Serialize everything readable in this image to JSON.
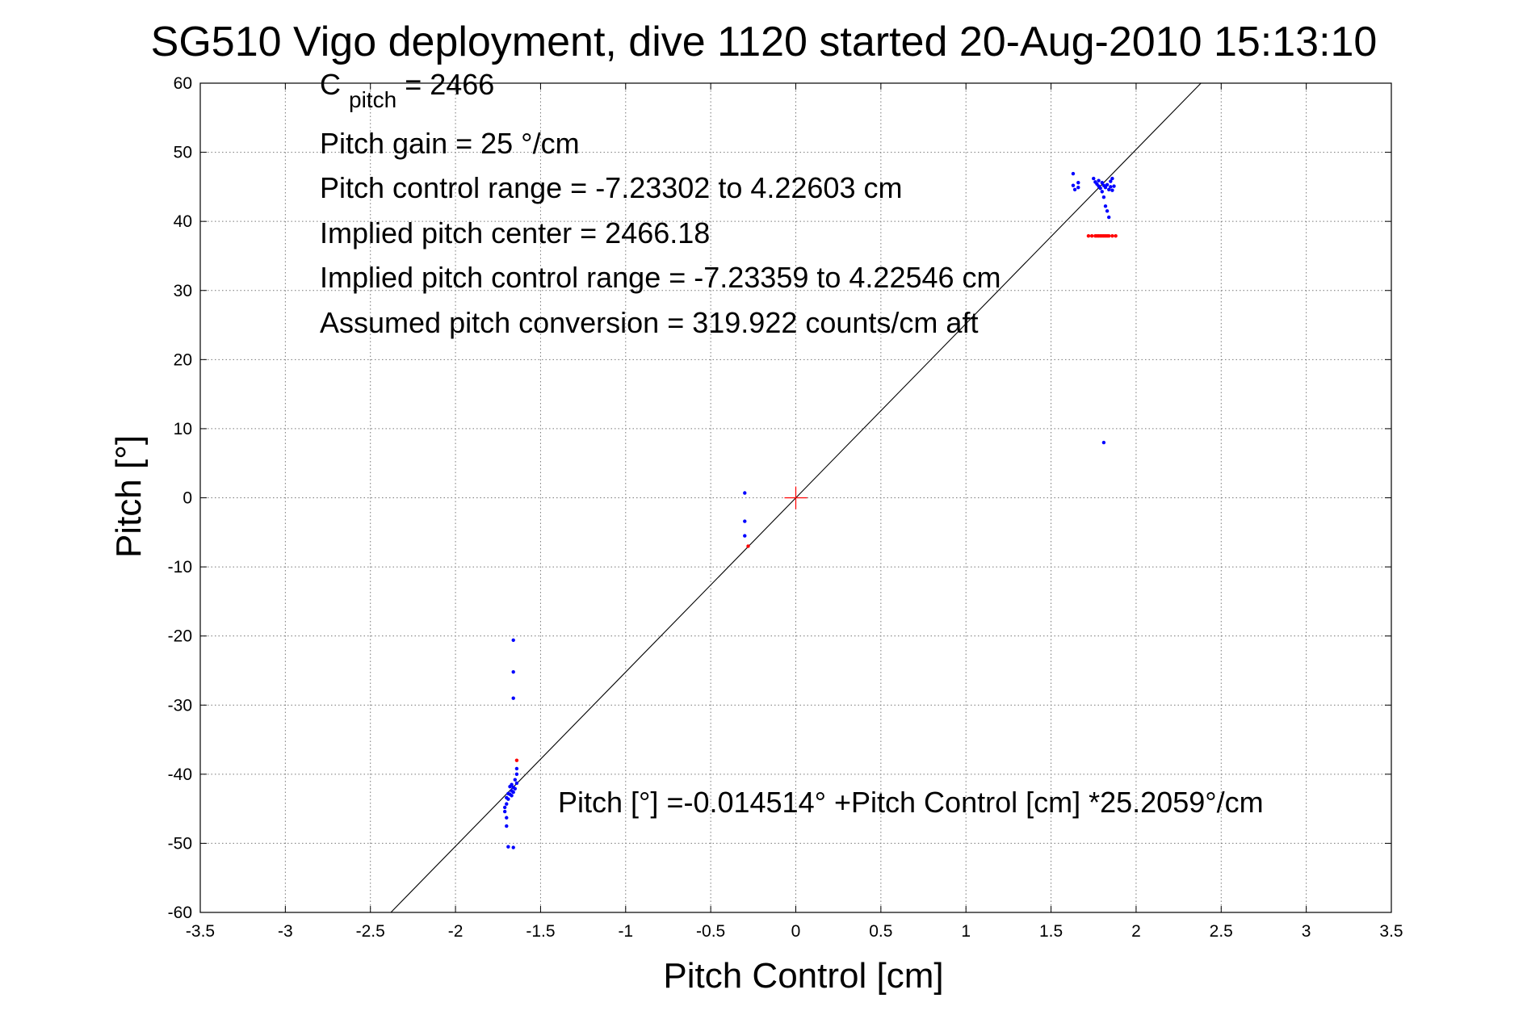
{
  "chart_data": {
    "type": "scatter",
    "title": "SG510 Vigo deployment, dive 1120 started 20-Aug-2010 15:13:10",
    "xlabel": "Pitch Control [cm]",
    "ylabel": "Pitch [°]",
    "xlim": [
      -3.5,
      3.5
    ],
    "ylim": [
      -60,
      60
    ],
    "xticks": [
      -3.5,
      -3,
      -2.5,
      -2,
      -1.5,
      -1,
      -0.5,
      0,
      0.5,
      1,
      1.5,
      2,
      2.5,
      3,
      3.5
    ],
    "xtick_labels": [
      "-3.5",
      "-3",
      "-2.5",
      "-2",
      "-1.5",
      "-1",
      "-0.5",
      "0",
      "0.5",
      "1",
      "1.5",
      "2",
      "2.5",
      "3",
      "3.5"
    ],
    "yticks": [
      -60,
      -50,
      -40,
      -30,
      -20,
      -10,
      0,
      10,
      20,
      30,
      40,
      50,
      60
    ],
    "ytick_labels": [
      "-60",
      "-50",
      "-40",
      "-30",
      "-20",
      "-10",
      "0",
      "10",
      "20",
      "30",
      "40",
      "50",
      "60"
    ],
    "grid": true,
    "annotations": {
      "c_pitch_base": "C",
      "c_pitch_sub": "pitch",
      "c_pitch_rest": " = 2466",
      "line2": "Pitch gain = 25 °/cm",
      "line3": "Pitch control range = -7.23302 to 4.22603 cm",
      "line4": "Implied pitch center = 2466.18",
      "line5": "Implied pitch control range = -7.23359 to 4.22546 cm",
      "line6": "Assumed pitch conversion = 319.922 counts/cm aft",
      "fit_equation": "Pitch [°] =-0.014514° +Pitch Control [cm] *25.2059°/cm"
    },
    "fit_line": {
      "intercept": -0.014514,
      "slope": 25.2059,
      "color": "#000000"
    },
    "center_marker": {
      "x": 0,
      "y": 0,
      "color": "#ff0000"
    },
    "series": [
      {
        "color": "#0000ff",
        "points": [
          [
            1.63,
            46.9
          ],
          [
            1.63,
            45.2
          ],
          [
            1.64,
            44.6
          ],
          [
            1.66,
            45.6
          ],
          [
            1.66,
            44.9
          ],
          [
            1.75,
            46.2
          ],
          [
            1.76,
            45.7
          ],
          [
            1.77,
            45.4
          ],
          [
            1.78,
            45.9
          ],
          [
            1.78,
            45.1
          ],
          [
            1.79,
            44.8
          ],
          [
            1.8,
            45.6
          ],
          [
            1.8,
            44.3
          ],
          [
            1.81,
            45.2
          ],
          [
            1.81,
            43.5
          ],
          [
            1.82,
            42.2
          ],
          [
            1.82,
            44.9
          ],
          [
            1.83,
            41.5
          ],
          [
            1.83,
            45.3
          ],
          [
            1.84,
            44.6
          ],
          [
            1.84,
            40.6
          ],
          [
            1.85,
            45.8
          ],
          [
            1.85,
            45.0
          ],
          [
            1.86,
            44.5
          ],
          [
            1.86,
            46.2
          ],
          [
            1.87,
            45.1
          ],
          [
            1.81,
            8.0
          ],
          [
            -0.3,
            0.7
          ],
          [
            -0.3,
            -3.4
          ],
          [
            -0.3,
            -5.5
          ],
          [
            -1.66,
            -20.6
          ],
          [
            -1.66,
            -25.2
          ],
          [
            -1.66,
            -29.0
          ],
          [
            -1.64,
            -39.2
          ],
          [
            -1.64,
            -40.0
          ],
          [
            -1.64,
            -41.3
          ],
          [
            -1.65,
            -42.1
          ],
          [
            -1.65,
            -40.8
          ],
          [
            -1.66,
            -41.9
          ],
          [
            -1.66,
            -42.6
          ],
          [
            -1.67,
            -41.5
          ],
          [
            -1.67,
            -43.1
          ],
          [
            -1.67,
            -42.4
          ],
          [
            -1.68,
            -42.9
          ],
          [
            -1.68,
            -41.8
          ],
          [
            -1.69,
            -43.6
          ],
          [
            -1.69,
            -42.8
          ],
          [
            -1.7,
            -44.3
          ],
          [
            -1.7,
            -43.4
          ],
          [
            -1.71,
            -44.8
          ],
          [
            -1.71,
            -45.4
          ],
          [
            -1.7,
            -46.3
          ],
          [
            -1.7,
            -47.5
          ],
          [
            -1.69,
            -50.5
          ],
          [
            -1.66,
            -50.6
          ]
        ]
      },
      {
        "color": "#ff0000",
        "points": [
          [
            1.72,
            37.9
          ],
          [
            1.74,
            37.9
          ],
          [
            1.76,
            37.9
          ],
          [
            1.77,
            37.9
          ],
          [
            1.78,
            37.9
          ],
          [
            1.79,
            37.9
          ],
          [
            1.8,
            37.9
          ],
          [
            1.81,
            37.9
          ],
          [
            1.82,
            37.9
          ],
          [
            1.83,
            37.9
          ],
          [
            1.84,
            37.9
          ],
          [
            1.86,
            37.9
          ],
          [
            1.88,
            37.9
          ],
          [
            -0.28,
            -7.0
          ],
          [
            -1.64,
            -38.0
          ]
        ]
      }
    ]
  }
}
